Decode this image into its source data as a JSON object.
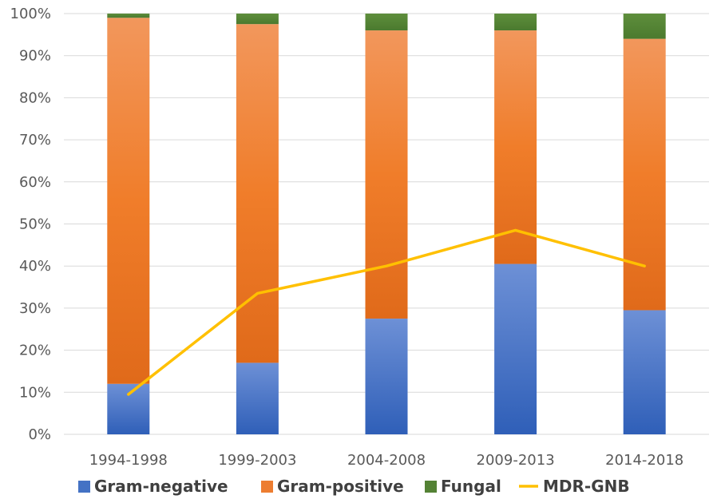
{
  "chart_data": {
    "type": "bar",
    "stacked": true,
    "categories": [
      "1994-1998",
      "1999-2003",
      "2004-2008",
      "2009-2013",
      "2014-2018"
    ],
    "series": [
      {
        "name": "Gram-negative",
        "values": [
          12,
          17,
          27.5,
          40.5,
          29.5
        ],
        "color": "#4472C4"
      },
      {
        "name": "Gram-positive",
        "values": [
          87,
          80.5,
          68.5,
          55.5,
          64.5
        ],
        "color": "#ED7D31"
      },
      {
        "name": "Fungal",
        "values": [
          1,
          2.5,
          4,
          4,
          6
        ],
        "color": "#548235"
      }
    ],
    "line_series": {
      "name": "MDR-GNB",
      "values": [
        9.5,
        33.5,
        40,
        48.5,
        40
      ],
      "color": "#FFC000"
    },
    "ylim": [
      0,
      100
    ],
    "yticks": [
      "0%",
      "10%",
      "20%",
      "30%",
      "40%",
      "50%",
      "60%",
      "70%",
      "80%",
      "90%",
      "100%"
    ],
    "grid": true,
    "legend_position": "bottom",
    "title": "",
    "xlabel": "",
    "ylabel": ""
  }
}
